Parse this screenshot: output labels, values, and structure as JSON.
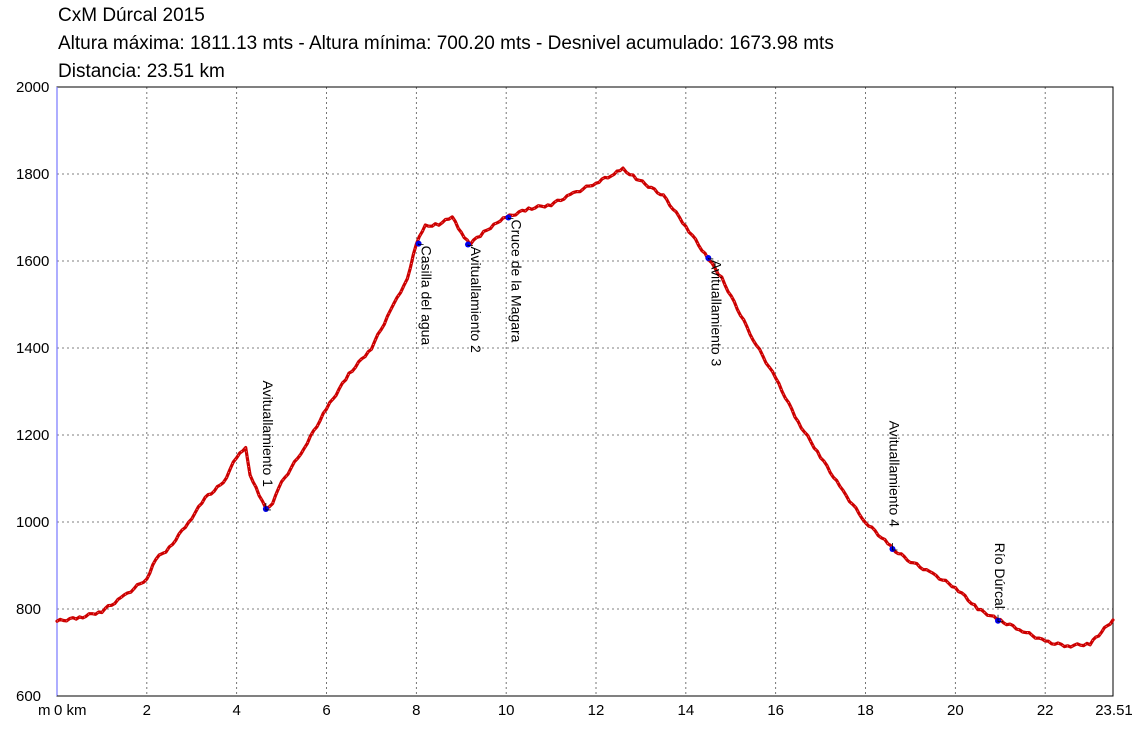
{
  "header": {
    "title": "CxM Dúrcal 2015",
    "stats": "Altura máxima: 1811.13 mts - Altura mínima: 700.20 mts - Desnivel acumulado: 1673.98 mts",
    "distance": "Distancia: 23.51 km"
  },
  "colors": {
    "profile": "#cc0000",
    "marker": "#0000ee",
    "grid": "#555555",
    "axis": "#7777ff"
  },
  "chart_data": {
    "type": "line",
    "title": "CxM Dúrcal 2015",
    "xlabel": "km",
    "ylabel": "m",
    "xlim": [
      0,
      23.51
    ],
    "ylim": [
      600,
      2000
    ],
    "x_ticks": [
      0,
      2,
      4,
      6,
      8,
      10,
      12,
      14,
      16,
      18,
      20,
      22,
      23.51
    ],
    "x_tick_labels": [
      "0 km",
      "2",
      "4",
      "6",
      "8",
      "10",
      "12",
      "14",
      "16",
      "18",
      "20",
      "22",
      "23.51"
    ],
    "y_ticks": [
      600,
      800,
      1000,
      1200,
      1400,
      1600,
      1800,
      2000
    ],
    "y_tick_labels": [
      "600",
      "800",
      "1000",
      "1200",
      "1400",
      "1600",
      "1800",
      "2000"
    ],
    "y_unit_label": "m",
    "grid": true,
    "series": [
      {
        "x": [
          0,
          0.5,
          1,
          1.5,
          2,
          2.2,
          2.5,
          3,
          3.3,
          3.7,
          4,
          4.2,
          4.3,
          4.5,
          4.65,
          4.8,
          5,
          5.5,
          6,
          6.5,
          7,
          7.5,
          7.8,
          8,
          8.2,
          8.5,
          8.8,
          9,
          9.2,
          9.5,
          9.8,
          10,
          10.5,
          11,
          11.5,
          12,
          12.4,
          12.6,
          12.9,
          13.5,
          14,
          14.5,
          14.8,
          15.5,
          16,
          16.5,
          17,
          17.5,
          18,
          18.5,
          18.6,
          19,
          19.5,
          20,
          20.5,
          21,
          21.5,
          22,
          22.5,
          23,
          23.51
        ],
        "y": [
          772,
          780,
          795,
          830,
          870,
          915,
          940,
          1010,
          1055,
          1090,
          1150,
          1168,
          1110,
          1060,
          1030,
          1045,
          1090,
          1170,
          1260,
          1340,
          1400,
          1500,
          1560,
          1640,
          1680,
          1685,
          1700,
          1665,
          1640,
          1665,
          1690,
          1700,
          1720,
          1730,
          1755,
          1780,
          1800,
          1811,
          1790,
          1750,
          1680,
          1605,
          1560,
          1420,
          1330,
          1230,
          1150,
          1070,
          1000,
          950,
          938,
          910,
          880,
          850,
          800,
          773,
          750,
          725,
          715,
          720,
          775
        ]
      }
    ],
    "annotations": [
      {
        "x": 4.65,
        "y": 1030,
        "label": "Avituallamiento 1"
      },
      {
        "x": 8.05,
        "y": 1640,
        "label": "Casilla del agua"
      },
      {
        "x": 9.15,
        "y": 1638,
        "label": "Avituallamiento 2"
      },
      {
        "x": 10.05,
        "y": 1700,
        "label": "Cruce de la Magara"
      },
      {
        "x": 14.5,
        "y": 1607,
        "label": "Avituallamiento 3"
      },
      {
        "x": 18.6,
        "y": 938,
        "label": "Avituallamiento 4"
      },
      {
        "x": 20.95,
        "y": 773,
        "label": "Río Dúrcal"
      }
    ]
  }
}
